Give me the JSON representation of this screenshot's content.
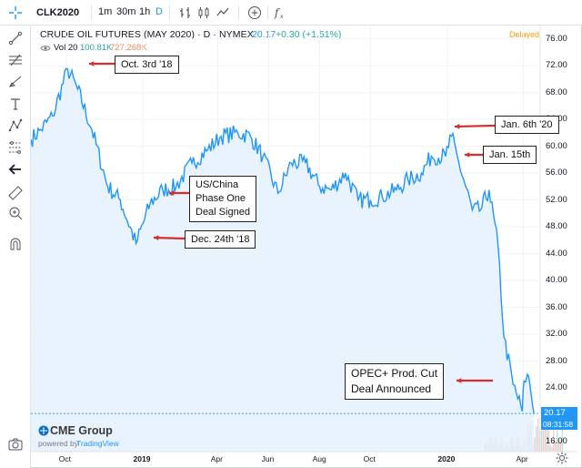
{
  "toolbar": {
    "symbol": "CLK2020",
    "intervals": [
      "1m",
      "30m",
      "1h",
      "D"
    ],
    "active_interval": "D",
    "icons": [
      "crosshair-icon",
      "bar-chart-icon",
      "candles-icon",
      "line-style-icon",
      "add-compare-icon",
      "indicators-icon"
    ]
  },
  "header": {
    "title": "CRUDE OIL FUTURES (MAY 2020) · D · NYMEX",
    "last": "20.17",
    "change": "+0.30 (+1.51%)",
    "delayed": "Delayed",
    "volume_label": "Vol 20",
    "volume_a": "100.81K",
    "volume_b": "727.268K"
  },
  "price_box": "20.17",
  "time_box": "08:31:58",
  "brand": {
    "name": "CME Group",
    "powered_by": "powered by",
    "tradingview": "TradingView"
  },
  "annotations": {
    "oct3": "Oct. 3rd '18",
    "phase_one_1": "US/China",
    "phase_one_2": "Phase One",
    "phase_one_3": "Deal Signed",
    "dec24": "Dec. 24th '18",
    "jan6": "Jan. 6th '20",
    "jan15": "Jan. 15th",
    "opec_1": "OPEC+ Prod. Cut",
    "opec_2": "Deal Announced"
  },
  "colors": {
    "line": "#2196f3",
    "area": "#e3f0fc",
    "arrow": "#d32f2f",
    "delayed": "#ff9800"
  },
  "chart_data": {
    "type": "area",
    "title": "CRUDE OIL FUTURES (MAY 2020)",
    "y_axis_labels": [
      "76.00",
      "72.00",
      "68.00",
      "64.00",
      "60.00",
      "56.00",
      "52.00",
      "48.00",
      "44.00",
      "40.00",
      "36.00",
      "32.00",
      "28.00",
      "24.00",
      "20.17",
      "16.00"
    ],
    "x_axis_labels": [
      "Oct",
      "2019",
      "Apr",
      "Jun",
      "Aug",
      "Oct",
      "2020",
      "Apr"
    ],
    "x": [
      "2018-08-20",
      "2018-09-01",
      "2018-09-15",
      "2018-10-03",
      "2018-10-15",
      "2018-11-01",
      "2018-11-20",
      "2018-12-05",
      "2018-12-24",
      "2019-01-10",
      "2019-01-25",
      "2019-02-10",
      "2019-03-01",
      "2019-03-20",
      "2019-04-05",
      "2019-04-25",
      "2019-05-10",
      "2019-05-25",
      "2019-06-12",
      "2019-06-28",
      "2019-07-15",
      "2019-08-01",
      "2019-08-15",
      "2019-09-01",
      "2019-09-16",
      "2019-10-01",
      "2019-10-15",
      "2019-11-01",
      "2019-11-15",
      "2019-12-01",
      "2019-12-13",
      "2019-12-30",
      "2020-01-06",
      "2020-01-15",
      "2020-01-31",
      "2020-02-10",
      "2020-02-20",
      "2020-03-02",
      "2020-03-09",
      "2020-03-20",
      "2020-03-31",
      "2020-04-02",
      "2020-04-06",
      "2020-04-09",
      "2020-04-14"
    ],
    "y": [
      61.0,
      62.5,
      64.5,
      71.5,
      68.5,
      62.5,
      54.0,
      52.0,
      45.5,
      51.5,
      53.5,
      54.0,
      57.5,
      59.5,
      61.5,
      62.0,
      61.5,
      58.5,
      53.0,
      57.5,
      57.5,
      54.0,
      53.5,
      56.0,
      52.0,
      52.0,
      52.5,
      53.5,
      55.0,
      56.0,
      58.5,
      58.5,
      61.5,
      57.5,
      50.5,
      50.5,
      53.5,
      45.0,
      31.5,
      24.5,
      20.5,
      25.0,
      26.0,
      24.5,
      20.17
    ],
    "ylim": [
      14.5,
      78
    ],
    "xlim": [
      "2018-08-20",
      "2020-04-17"
    ],
    "grid": true,
    "legend": "none"
  }
}
